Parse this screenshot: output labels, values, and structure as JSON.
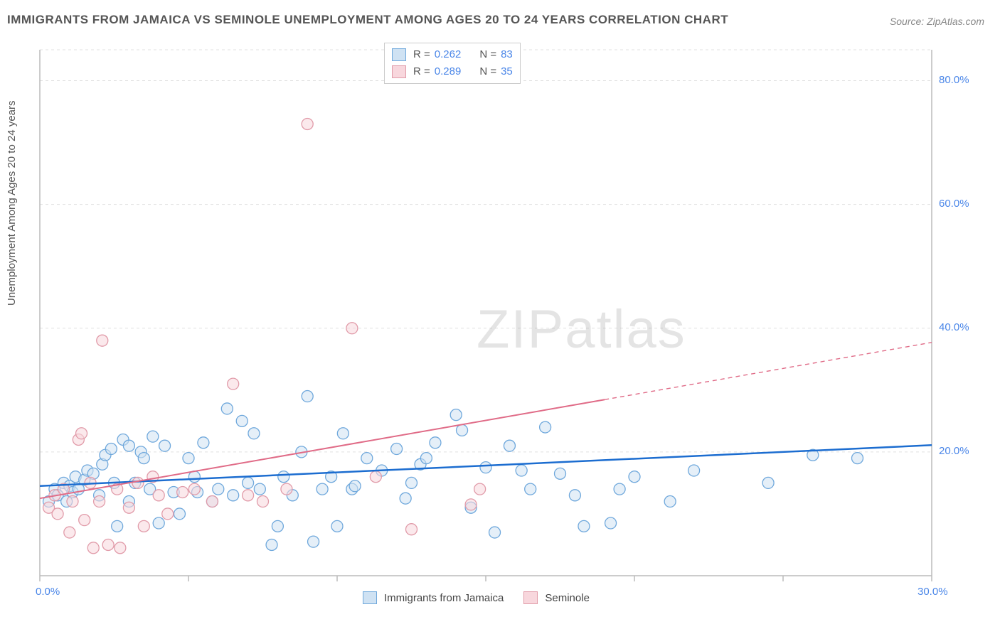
{
  "title": "IMMIGRANTS FROM JAMAICA VS SEMINOLE UNEMPLOYMENT AMONG AGES 20 TO 24 YEARS CORRELATION CHART",
  "source": "Source: ZipAtlas.com",
  "watermark": "ZIPatlas",
  "chart": {
    "type": "scatter",
    "background_color": "#ffffff",
    "grid_color": "#e0e0e0",
    "axis_color": "#bbbbbb",
    "tick_color": "#bbbbbb",
    "x_axis": {
      "min": 0,
      "max": 30,
      "ticks": [
        0,
        5,
        10,
        15,
        20,
        25,
        30
      ],
      "labels": [
        "0.0%",
        "",
        "",
        "",
        "",
        "",
        "30.0%"
      ]
    },
    "y_axis": {
      "min": 0,
      "max": 85,
      "label": "Unemployment Among Ages 20 to 24 years",
      "ticks": [
        20,
        40,
        60,
        80
      ],
      "labels": [
        "20.0%",
        "40.0%",
        "60.0%",
        "80.0%"
      ]
    },
    "series": [
      {
        "name": "Immigrants from Jamaica",
        "marker_fill": "#cfe2f3",
        "marker_stroke": "#6fa8dc",
        "marker_radius": 8,
        "fill_opacity": 0.55,
        "R": "0.262",
        "N": "83",
        "trend": {
          "color": "#1c6dd0",
          "width": 2.5,
          "y_intercept": 14.5,
          "slope": 0.22,
          "x_start": 0,
          "x_solid_end": 30,
          "x_dash_end": 30
        },
        "points": [
          [
            0.3,
            12
          ],
          [
            0.5,
            14
          ],
          [
            0.6,
            13
          ],
          [
            0.8,
            15
          ],
          [
            0.9,
            12
          ],
          [
            1.0,
            14.5
          ],
          [
            1.1,
            13.5
          ],
          [
            1.2,
            16
          ],
          [
            1.3,
            14
          ],
          [
            1.5,
            15.5
          ],
          [
            1.6,
            17
          ],
          [
            1.8,
            16.5
          ],
          [
            2.0,
            13
          ],
          [
            2.1,
            18
          ],
          [
            2.2,
            19.5
          ],
          [
            2.4,
            20.5
          ],
          [
            2.5,
            15
          ],
          [
            2.6,
            8
          ],
          [
            2.8,
            22
          ],
          [
            3.0,
            21
          ],
          [
            3.0,
            12
          ],
          [
            3.2,
            15
          ],
          [
            3.4,
            20
          ],
          [
            3.5,
            19
          ],
          [
            3.7,
            14
          ],
          [
            3.8,
            22.5
          ],
          [
            4.0,
            8.5
          ],
          [
            4.2,
            21
          ],
          [
            4.5,
            13.5
          ],
          [
            4.7,
            10
          ],
          [
            5.0,
            19
          ],
          [
            5.2,
            16
          ],
          [
            5.3,
            13.5
          ],
          [
            5.5,
            21.5
          ],
          [
            5.8,
            12
          ],
          [
            6.0,
            14
          ],
          [
            6.3,
            27
          ],
          [
            6.5,
            13
          ],
          [
            6.8,
            25
          ],
          [
            7.0,
            15
          ],
          [
            7.2,
            23
          ],
          [
            7.4,
            14
          ],
          [
            7.8,
            5
          ],
          [
            8.0,
            8
          ],
          [
            8.2,
            16
          ],
          [
            8.5,
            13
          ],
          [
            8.8,
            20
          ],
          [
            9.0,
            29
          ],
          [
            9.2,
            5.5
          ],
          [
            9.5,
            14
          ],
          [
            9.8,
            16
          ],
          [
            10.0,
            8
          ],
          [
            10.2,
            23
          ],
          [
            10.5,
            14
          ],
          [
            10.6,
            14.5
          ],
          [
            11.0,
            19
          ],
          [
            11.5,
            17
          ],
          [
            12.0,
            20.5
          ],
          [
            12.3,
            12.5
          ],
          [
            12.5,
            15
          ],
          [
            12.8,
            18
          ],
          [
            13.0,
            19
          ],
          [
            13.3,
            21.5
          ],
          [
            14.0,
            26
          ],
          [
            14.2,
            23.5
          ],
          [
            14.5,
            11
          ],
          [
            15.0,
            17.5
          ],
          [
            15.3,
            7
          ],
          [
            15.8,
            21
          ],
          [
            16.2,
            17
          ],
          [
            16.5,
            14
          ],
          [
            17.0,
            24
          ],
          [
            17.5,
            16.5
          ],
          [
            18.0,
            13
          ],
          [
            18.3,
            8
          ],
          [
            19.2,
            8.5
          ],
          [
            19.5,
            14
          ],
          [
            20.0,
            16
          ],
          [
            21.2,
            12
          ],
          [
            22.0,
            17
          ],
          [
            24.5,
            15
          ],
          [
            26.0,
            19.5
          ],
          [
            27.5,
            19
          ]
        ]
      },
      {
        "name": "Seminole",
        "marker_fill": "#f8d7dd",
        "marker_stroke": "#e19ba9",
        "marker_radius": 8,
        "fill_opacity": 0.55,
        "R": "0.289",
        "N": "35",
        "trend": {
          "color": "#e06b87",
          "width": 2,
          "y_intercept": 12.5,
          "slope": 0.84,
          "x_start": 0,
          "x_solid_end": 19,
          "x_dash_end": 30
        },
        "points": [
          [
            0.3,
            11
          ],
          [
            0.5,
            13
          ],
          [
            0.6,
            10
          ],
          [
            0.8,
            14
          ],
          [
            1.0,
            7
          ],
          [
            1.1,
            12
          ],
          [
            1.3,
            22
          ],
          [
            1.4,
            23
          ],
          [
            1.5,
            9
          ],
          [
            1.7,
            15
          ],
          [
            1.8,
            4.5
          ],
          [
            2.0,
            12
          ],
          [
            2.1,
            38
          ],
          [
            2.3,
            5
          ],
          [
            2.6,
            14
          ],
          [
            2.7,
            4.5
          ],
          [
            3.0,
            11
          ],
          [
            3.3,
            15
          ],
          [
            3.5,
            8
          ],
          [
            3.8,
            16
          ],
          [
            4.0,
            13
          ],
          [
            4.3,
            10
          ],
          [
            4.8,
            13.5
          ],
          [
            5.2,
            14
          ],
          [
            5.8,
            12
          ],
          [
            6.5,
            31
          ],
          [
            7.0,
            13
          ],
          [
            7.5,
            12
          ],
          [
            8.3,
            14
          ],
          [
            9.0,
            73
          ],
          [
            10.5,
            40
          ],
          [
            11.3,
            16
          ],
          [
            12.5,
            7.5
          ],
          [
            14.5,
            11.5
          ],
          [
            14.8,
            14
          ]
        ]
      }
    ],
    "legend_top": {
      "rows": [
        {
          "swatch_fill": "#cfe2f3",
          "swatch_stroke": "#6fa8dc",
          "R_label": "R =",
          "R": "0.262",
          "N_label": "N =",
          "N": "83"
        },
        {
          "swatch_fill": "#f8d7dd",
          "swatch_stroke": "#e19ba9",
          "R_label": "R =",
          "R": "0.289",
          "N_label": "N =",
          "N": "35"
        }
      ]
    },
    "legend_bottom": [
      {
        "swatch_fill": "#cfe2f3",
        "swatch_stroke": "#6fa8dc",
        "label": "Immigrants from Jamaica"
      },
      {
        "swatch_fill": "#f8d7dd",
        "swatch_stroke": "#e19ba9",
        "label": "Seminole"
      }
    ]
  }
}
